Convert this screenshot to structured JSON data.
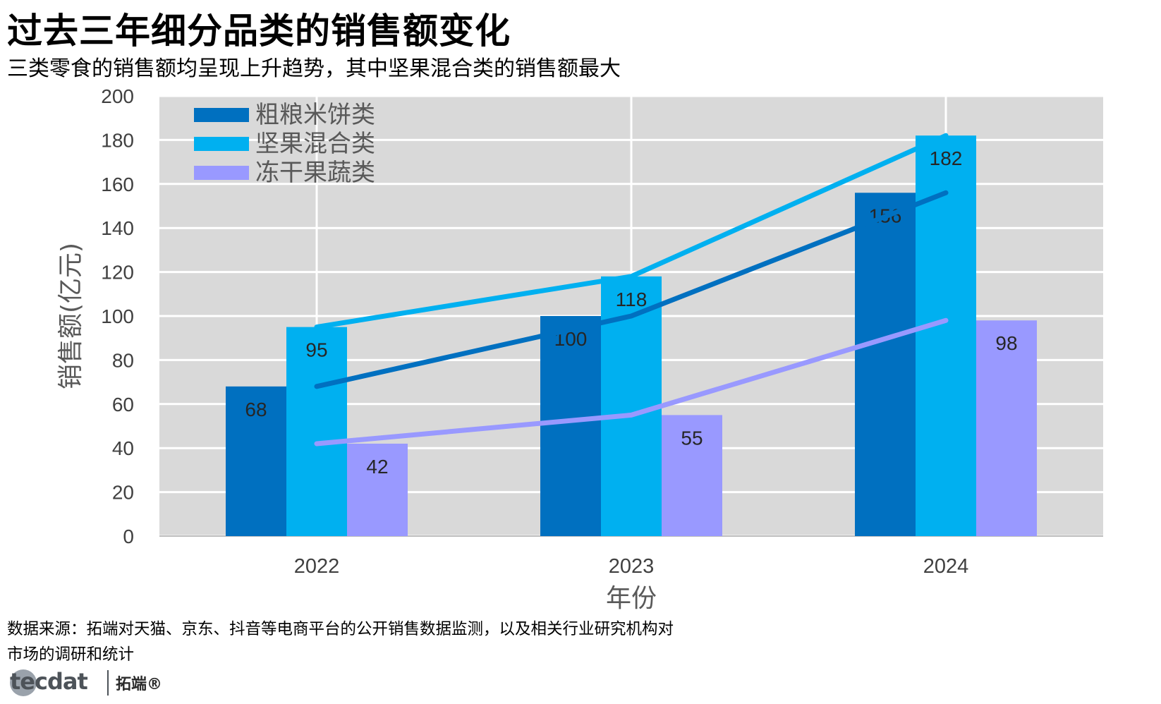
{
  "header": {
    "title": "过去三年细分品类的销售额变化",
    "subtitle": "三类零食的销售额均呈现上升趋势，其中坚果混合类的销售额最大"
  },
  "chart_data": {
    "type": "bar",
    "categories": [
      "2022",
      "2023",
      "2024"
    ],
    "series": [
      {
        "name": "粗粮米饼类",
        "values": [
          68,
          100,
          156
        ],
        "color": "#0070c0"
      },
      {
        "name": "坚果混合类",
        "values": [
          95,
          118,
          182
        ],
        "color": "#00b0f0"
      },
      {
        "name": "冻干果蔬类",
        "values": [
          42,
          55,
          98
        ],
        "color": "#9999ff"
      }
    ],
    "overlay": "line series connecting each series' values at category centers",
    "xlabel": "年份",
    "ylabel": "销售额(亿元)",
    "ylim": [
      0,
      200
    ],
    "yticks": [
      0,
      20,
      40,
      60,
      80,
      100,
      120,
      140,
      160,
      180,
      200
    ],
    "grid": true,
    "legend": "top-left",
    "background_color": "#d9d9d9",
    "data_labels": true
  },
  "footer": {
    "source": "数据来源：拓端对天猫、京东、抖音等电商平台的公开销售数据监测，以及相关行业研究机构对市场的调研和统计",
    "logo_text": "tecdat",
    "logo_cn": "拓端®"
  }
}
